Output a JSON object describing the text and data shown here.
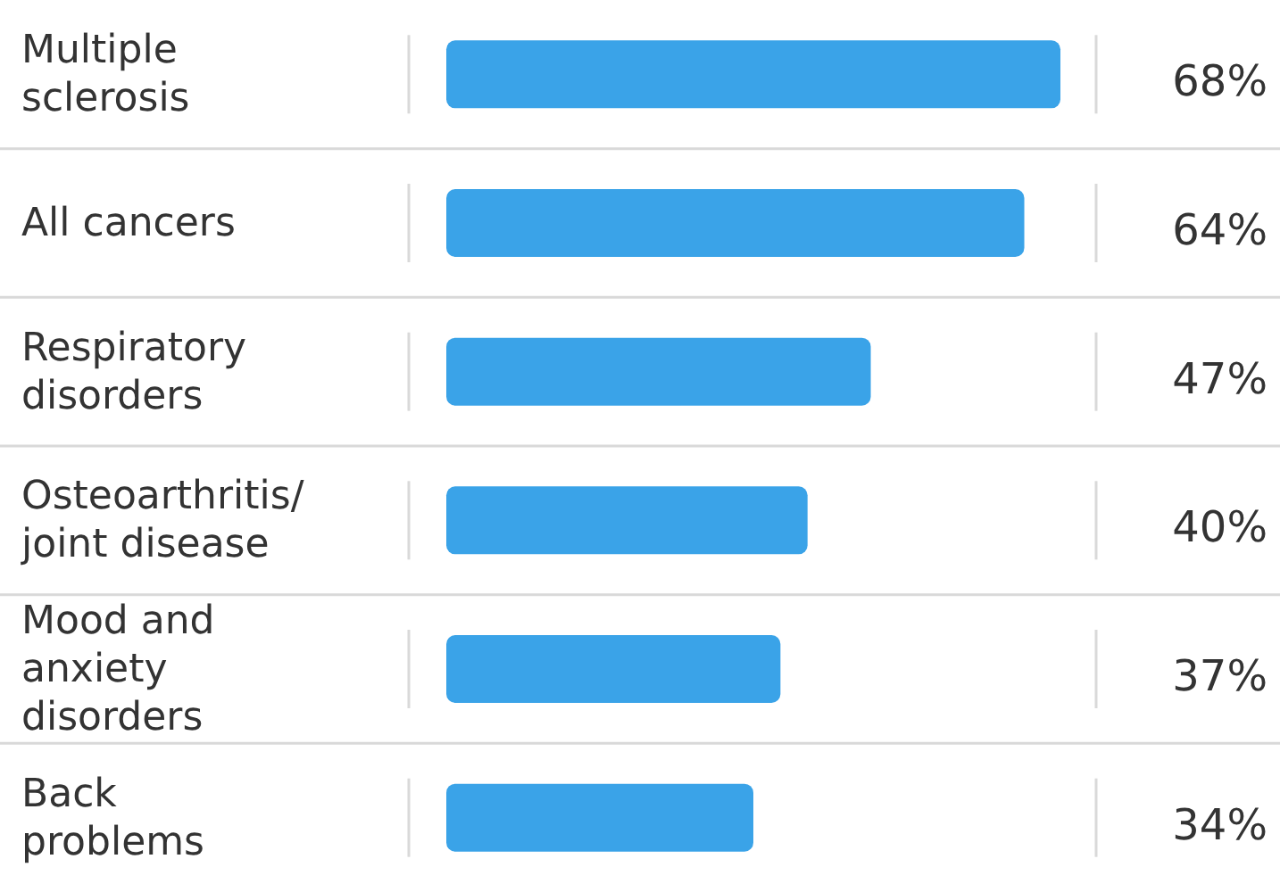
{
  "chart_data": {
    "type": "bar",
    "orientation": "horizontal",
    "categories": [
      "Multiple\nsclerosis",
      "All cancers",
      "Respiratory\ndisorders",
      "Osteoarthritis/\njoint disease",
      "Mood and\nanxiety\ndisorders",
      "Back\nproblems"
    ],
    "values": [
      68,
      64,
      47,
      40,
      37,
      34
    ],
    "value_labels": [
      "68%",
      "64%",
      "47%",
      "40%",
      "37%",
      "34%"
    ],
    "color": "#3aa3e8"
  }
}
